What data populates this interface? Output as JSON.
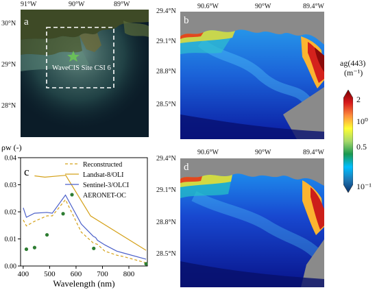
{
  "panel_a": {
    "label": "a",
    "site_label": "WaveCIS Site CSI 6",
    "x_ticks": [
      "91°W",
      "90°W",
      "89°W"
    ],
    "y_ticks": [
      "30°N",
      "29°N",
      "28°N"
    ]
  },
  "panel_b": {
    "label": "b",
    "x_ticks": [
      "90.6°W",
      "90°W",
      "89.4°W"
    ],
    "y_ticks": [
      "29.4°N",
      "29.1°N",
      "28.8°N",
      "28.5°N"
    ]
  },
  "panel_d": {
    "label": "d",
    "x_ticks": [
      "90.6°W",
      "90°W",
      "89.4°W"
    ],
    "y_ticks": [
      "29.4°N",
      "29.1°N",
      "28.8°N",
      "28.5°N"
    ]
  },
  "colorbar": {
    "title_line1": "ag(443)",
    "title_line2": "(m⁻¹)",
    "tick_2": "2",
    "tick_1": "10⁰",
    "tick_05": "0.5",
    "tick_01": "10⁻¹",
    "colors": [
      "#7a0000",
      "#d7191c",
      "#fd8d3c",
      "#ffff33",
      "#a6d96a",
      "#1a9850",
      "#00bfff",
      "#1f78b4",
      "#08306b"
    ]
  },
  "chart_data": {
    "type": "line",
    "label": "c",
    "ylabel": "ρw (-)",
    "xlabel": "Wavelength (nm)",
    "xlim": [
      390,
      870
    ],
    "ylim": [
      0,
      0.04
    ],
    "x_ticks": [
      400,
      500,
      600,
      700,
      800
    ],
    "y_ticks": [
      "0.00",
      "0.01",
      "0.02",
      "0.03",
      "0.04"
    ],
    "legend_position": "top-right",
    "series": [
      {
        "name": "Reconstructed",
        "color": "#d4a017",
        "dash": "4,3",
        "points": [
          [
            400,
            0.017
          ],
          [
            412,
            0.0148
          ],
          [
            443,
            0.0165
          ],
          [
            490,
            0.0185
          ],
          [
            510,
            0.0185
          ],
          [
            560,
            0.0245
          ],
          [
            620,
            0.0125
          ],
          [
            665,
            0.0085
          ],
          [
            681,
            0.008
          ],
          [
            709,
            0.0055
          ],
          [
            754,
            0.004
          ],
          [
            779,
            0.0035
          ],
          [
            865,
            0.0012
          ]
        ]
      },
      {
        "name": "Landsat-8/OLI",
        "color": "#d4a017",
        "dash": "",
        "points": [
          [
            443,
            0.0333
          ],
          [
            482,
            0.0328
          ],
          [
            561,
            0.0335
          ],
          [
            655,
            0.0185
          ],
          [
            865,
            0.0058
          ]
        ]
      },
      {
        "name": "Sentinel-3/OLCI",
        "color": "#4a5fc9",
        "dash": "",
        "points": [
          [
            400,
            0.0215
          ],
          [
            412,
            0.018
          ],
          [
            443,
            0.0195
          ],
          [
            490,
            0.0198
          ],
          [
            510,
            0.0195
          ],
          [
            560,
            0.0262
          ],
          [
            620,
            0.0155
          ],
          [
            665,
            0.011
          ],
          [
            674,
            0.0105
          ],
          [
            681,
            0.0095
          ],
          [
            709,
            0.0078
          ],
          [
            754,
            0.0055
          ],
          [
            779,
            0.0048
          ],
          [
            865,
            0.0025
          ]
        ]
      },
      {
        "name": "AERONET-OC",
        "color": "#2e7d32",
        "marker": "circle",
        "points": [
          [
            412,
            0.0062
          ],
          [
            443,
            0.0068
          ],
          [
            490,
            0.0115
          ],
          [
            551,
            0.0193
          ],
          [
            667,
            0.0065
          ],
          [
            865,
            0.0008
          ]
        ]
      }
    ]
  }
}
